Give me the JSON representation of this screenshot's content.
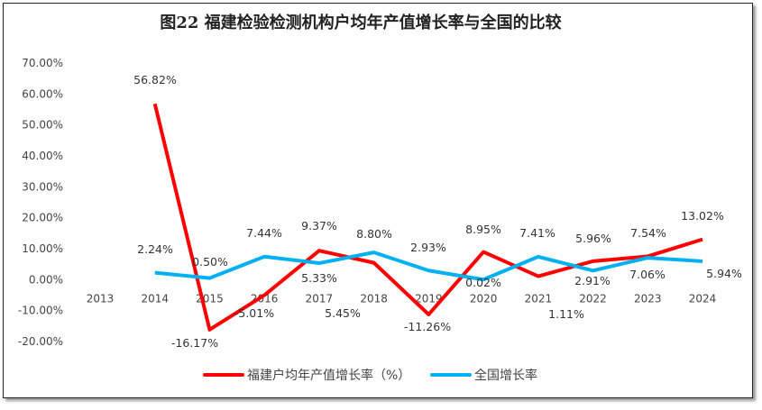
{
  "chart_data": {
    "type": "line",
    "title": "图22 福建检验检测机构户均年产值增长率与全国的比较",
    "categories": [
      "2013",
      "2014",
      "2015",
      "2016",
      "2017",
      "2018",
      "2019",
      "2020",
      "2021",
      "2022",
      "2023",
      "2024"
    ],
    "yticks": [
      "70.00%",
      "60.00%",
      "50.00%",
      "40.00%",
      "30.00%",
      "20.00%",
      "10.00%",
      "0.00%",
      "-10.00%",
      "-20.00%"
    ],
    "ylim": [
      -20,
      70
    ],
    "grid": false,
    "legend": "bottom",
    "series": [
      {
        "name": "福建户均年产值增长率（%）",
        "color": "#ff0000",
        "values": [
          null,
          56.82,
          -16.17,
          -5.01,
          9.37,
          5.45,
          -11.26,
          8.95,
          1.11,
          5.96,
          7.54,
          13.02
        ],
        "labels": [
          "",
          "56.82%",
          "-16.17%",
          "-5.01%",
          "9.37%",
          "5.45%",
          "-11.26%",
          "8.95%",
          "1.11%",
          "5.96%",
          "7.54%",
          "13.02%"
        ]
      },
      {
        "name": "全国增长率",
        "color": "#00b0f0",
        "values": [
          null,
          2.24,
          0.5,
          7.44,
          5.33,
          8.8,
          2.93,
          0.02,
          7.41,
          2.91,
          7.06,
          5.94
        ],
        "labels": [
          "",
          "2.24%",
          "0.50%",
          "7.44%",
          "5.33%",
          "8.80%",
          "2.93%",
          "0.02%",
          "7.41%",
          "2.91%",
          "7.06%",
          "5.94%"
        ]
      }
    ]
  }
}
